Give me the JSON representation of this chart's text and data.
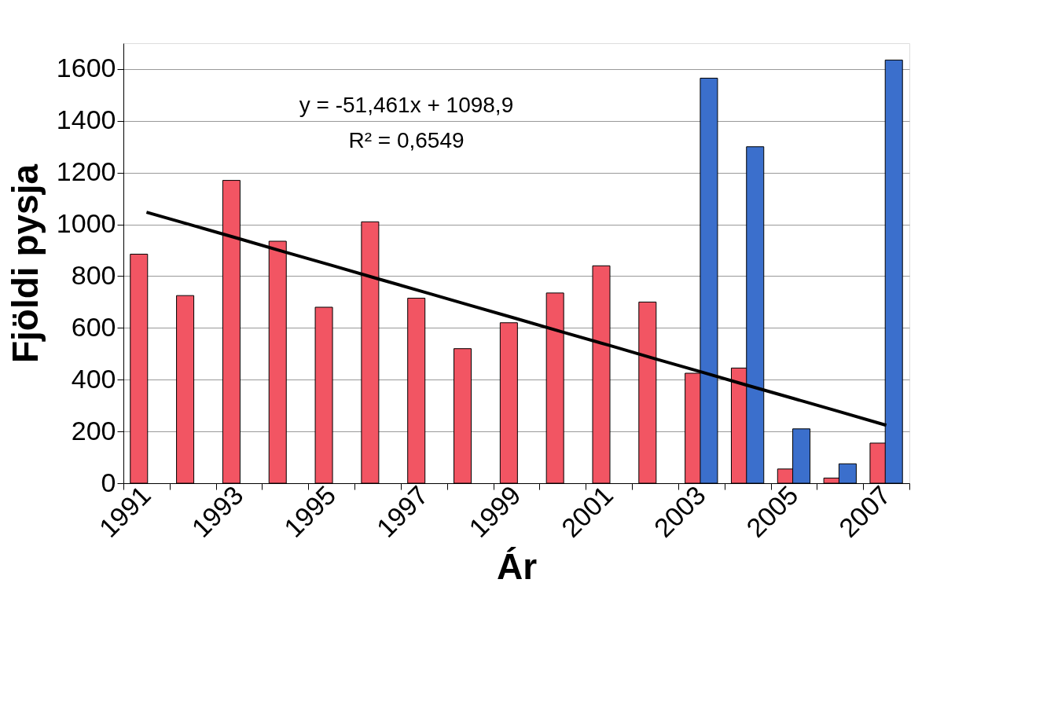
{
  "chart_data": {
    "type": "bar",
    "xlabel": "Ár",
    "ylabel": "Fjöldi pysja",
    "categories": [
      "1991",
      null,
      "1993",
      null,
      "1995",
      null,
      "1997",
      null,
      "1999",
      null,
      "2001",
      null,
      "2003",
      null,
      "2005",
      null,
      "2007"
    ],
    "series": [
      {
        "color": "#f25563",
        "values": [
          885,
          725,
          1170,
          935,
          680,
          1010,
          715,
          520,
          620,
          735,
          840,
          700,
          425,
          445,
          55,
          20,
          155
        ]
      },
      {
        "color": "#3b6fcc",
        "values": [
          null,
          null,
          null,
          null,
          null,
          null,
          null,
          null,
          null,
          null,
          null,
          null,
          1565,
          1300,
          210,
          75,
          1635
        ]
      },
      {
        "type": "line",
        "color": "#000000",
        "values": [
          1047,
          996,
          945,
          893,
          842,
          790,
          739,
          687,
          636,
          584,
          533,
          481,
          430,
          378,
          327,
          276,
          224
        ]
      }
    ],
    "ylim": [
      0,
      1700
    ],
    "yticks": [
      0,
      200,
      400,
      600,
      800,
      1000,
      1200,
      1400,
      1600
    ],
    "grid": "y",
    "legend": false,
    "annotations": [
      "y = -51,461x + 1098,9",
      "R² = 0,6549"
    ]
  }
}
